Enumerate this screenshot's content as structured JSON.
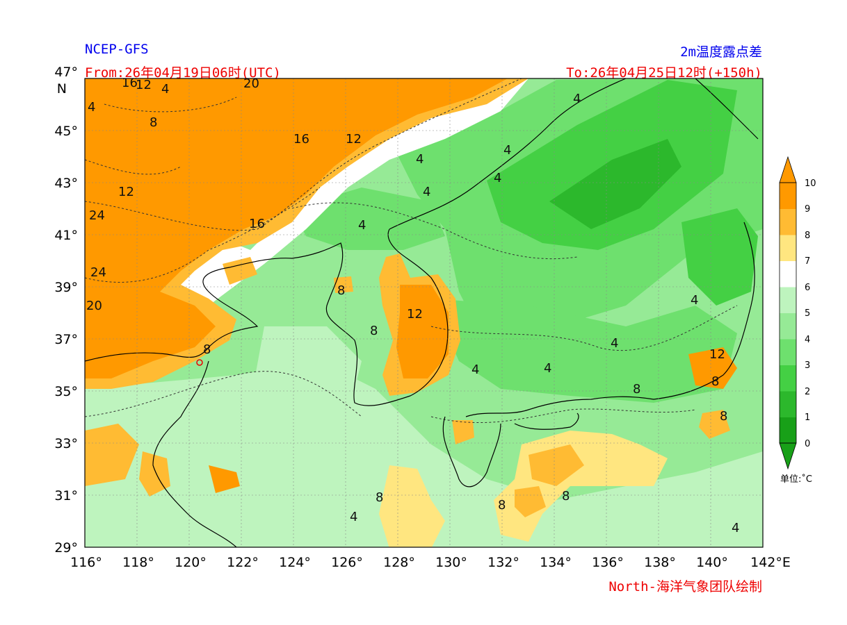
{
  "header": {
    "model": "NCEP-GFS",
    "field": "2m温度露点差",
    "from": "From:26年04月19日06时(UTC)",
    "to": "To:26年04月25日12时(+150h)",
    "credit": "North-海洋气象团队绘制"
  },
  "axes": {
    "lon_labels": [
      "116°",
      "118°",
      "120°",
      "122°",
      "124°",
      "126°",
      "128°",
      "130°",
      "132°",
      "134°",
      "136°",
      "138°",
      "140°",
      "142°E"
    ],
    "lat_labels": [
      "47°",
      "45°",
      "43°",
      "41°",
      "39°",
      "37°",
      "35°",
      "33°",
      "31°",
      "29°"
    ],
    "lat_unit": "N",
    "lon_range": [
      116,
      142
    ],
    "lat_range": [
      29,
      47
    ]
  },
  "colorbar": {
    "levels": [
      "0",
      "1",
      "2",
      "3",
      "4",
      "5",
      "6",
      "7",
      "8",
      "9",
      "10"
    ],
    "colors": [
      "#18a018",
      "#2cb82c",
      "#44d044",
      "#6ee06e",
      "#96ea96",
      "#bef4be",
      "#ffffff",
      "#ffe680",
      "#ffbb33",
      "#ff9900"
    ],
    "unit_label": "单位:˚C"
  },
  "contour_labels": [
    "16",
    "12",
    "4",
    "20",
    "8",
    "16",
    "12",
    "4",
    "24",
    "12",
    "4",
    "16",
    "24",
    "20",
    "8",
    "4",
    "12",
    "4",
    "4",
    "4",
    "4",
    "8",
    "8",
    "4",
    "4",
    "4",
    "8",
    "8",
    "8",
    "4",
    "8",
    "12",
    "4",
    "8",
    "8",
    "4"
  ]
}
